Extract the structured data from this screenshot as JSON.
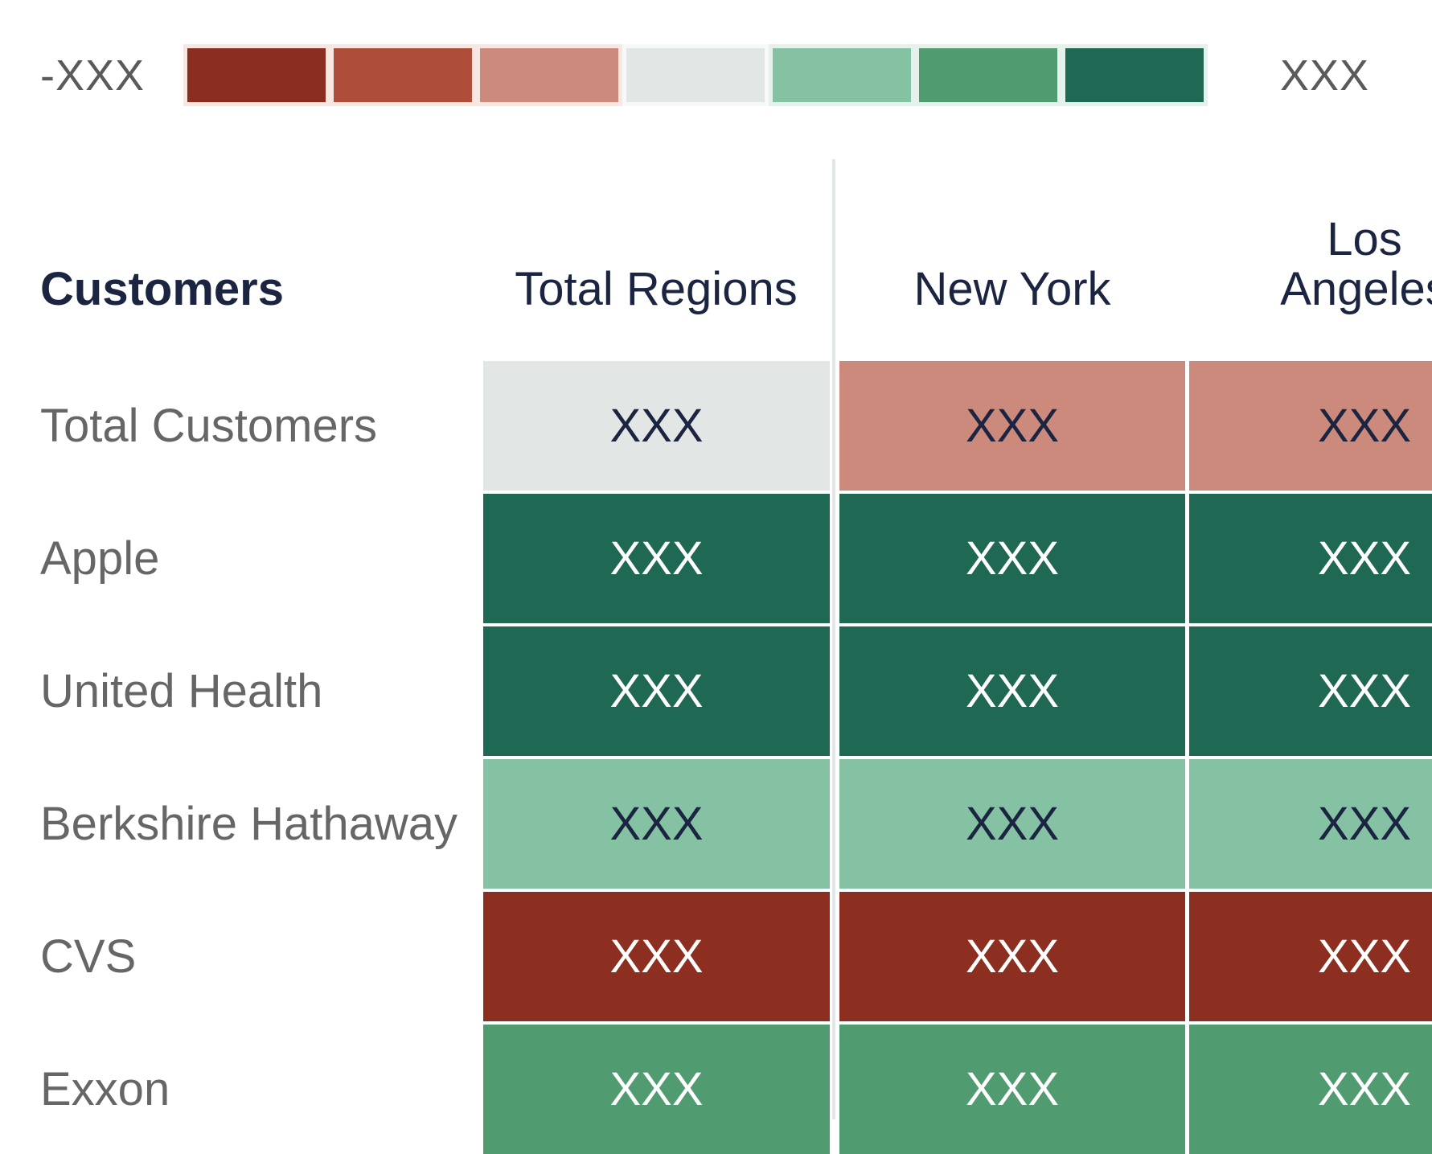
{
  "legend": {
    "min_label": "-XXX",
    "max_label": "XXX",
    "swatches": [
      {
        "name": "dark-red",
        "color": "#8c2e1f",
        "tone": "warm",
        "level": -3
      },
      {
        "name": "medium-red",
        "color": "#ae4e3a",
        "tone": "warm",
        "level": -2
      },
      {
        "name": "salmon",
        "color": "#cb8a7b",
        "tone": "warm",
        "level": -1
      },
      {
        "name": "neutral-gray",
        "color": "#e2e6e4",
        "tone": "neutral",
        "level": 0
      },
      {
        "name": "light-green",
        "color": "#85c1a3",
        "tone": "cool",
        "level": 1
      },
      {
        "name": "medium-green",
        "color": "#509c70",
        "tone": "cool",
        "level": 2
      },
      {
        "name": "dark-green",
        "color": "#1f6854",
        "tone": "cool",
        "level": 3
      }
    ]
  },
  "table": {
    "row_header_label": "Customers",
    "columns": [
      {
        "label": "Total Regions"
      },
      {
        "label": "New York"
      },
      {
        "label": "Los Angeles"
      }
    ],
    "rows": [
      {
        "label": "Total Customers",
        "cells": [
          {
            "value": "XXX",
            "bg": "#e2e6e4",
            "tone": "dark"
          },
          {
            "value": "XXX",
            "bg": "#cb8a7b",
            "tone": "dark"
          },
          {
            "value": "XXX",
            "bg": "#cb8a7b",
            "tone": "dark"
          }
        ]
      },
      {
        "label": "Apple",
        "cells": [
          {
            "value": "XXX",
            "bg": "#1f6854",
            "tone": "light"
          },
          {
            "value": "XXX",
            "bg": "#1f6854",
            "tone": "light"
          },
          {
            "value": "XXX",
            "bg": "#1f6854",
            "tone": "light"
          }
        ]
      },
      {
        "label": "United Health",
        "cells": [
          {
            "value": "XXX",
            "bg": "#1f6854",
            "tone": "light"
          },
          {
            "value": "XXX",
            "bg": "#1f6854",
            "tone": "light"
          },
          {
            "value": "XXX",
            "bg": "#1f6854",
            "tone": "light"
          }
        ]
      },
      {
        "label": "Berkshire Hathaway",
        "cells": [
          {
            "value": "XXX",
            "bg": "#85c1a3",
            "tone": "dark"
          },
          {
            "value": "XXX",
            "bg": "#85c1a3",
            "tone": "dark"
          },
          {
            "value": "XXX",
            "bg": "#85c1a3",
            "tone": "dark"
          }
        ]
      },
      {
        "label": "CVS",
        "cells": [
          {
            "value": "XXX",
            "bg": "#8c2f20",
            "tone": "light"
          },
          {
            "value": "XXX",
            "bg": "#8c2f20",
            "tone": "light"
          },
          {
            "value": "XXX",
            "bg": "#8c2f20",
            "tone": "light"
          }
        ]
      },
      {
        "label": "Exxon",
        "cells": [
          {
            "value": "XXX",
            "bg": "#509c70",
            "tone": "light"
          },
          {
            "value": "XXX",
            "bg": "#509c70",
            "tone": "light"
          },
          {
            "value": "XXX",
            "bg": "#509c70",
            "tone": "light"
          }
        ]
      }
    ]
  },
  "chart_data": {
    "type": "heatmap",
    "title": "",
    "rows": [
      "Total Customers",
      "Apple",
      "United Health",
      "Berkshire Hathaway",
      "CVS",
      "Exxon"
    ],
    "columns": [
      "Total Regions",
      "New York",
      "Los Angeles"
    ],
    "cell_labels": [
      [
        "XXX",
        "XXX",
        "XXX"
      ],
      [
        "XXX",
        "XXX",
        "XXX"
      ],
      [
        "XXX",
        "XXX",
        "XXX"
      ],
      [
        "XXX",
        "XXX",
        "XXX"
      ],
      [
        "XXX",
        "XXX",
        "XXX"
      ],
      [
        "XXX",
        "XXX",
        "XXX"
      ]
    ],
    "color_levels": [
      [
        0,
        -1,
        -1
      ],
      [
        3,
        3,
        3
      ],
      [
        3,
        3,
        3
      ],
      [
        1,
        1,
        1
      ],
      [
        -3,
        -3,
        -3
      ],
      [
        2,
        2,
        2
      ]
    ],
    "legend_position": "top",
    "legend_min_label": "-XXX",
    "legend_max_label": "XXX",
    "diverging_scale": [
      "#8c2e1f",
      "#ae4e3a",
      "#cb8a7b",
      "#e2e6e4",
      "#85c1a3",
      "#509c70",
      "#1f6854"
    ]
  },
  "colors": {
    "header_text": "#1b2440",
    "row_label_text": "#666666",
    "legend_label_text": "#5a5a5a",
    "divider": "#e3e6e8",
    "background": "#ffffff"
  }
}
